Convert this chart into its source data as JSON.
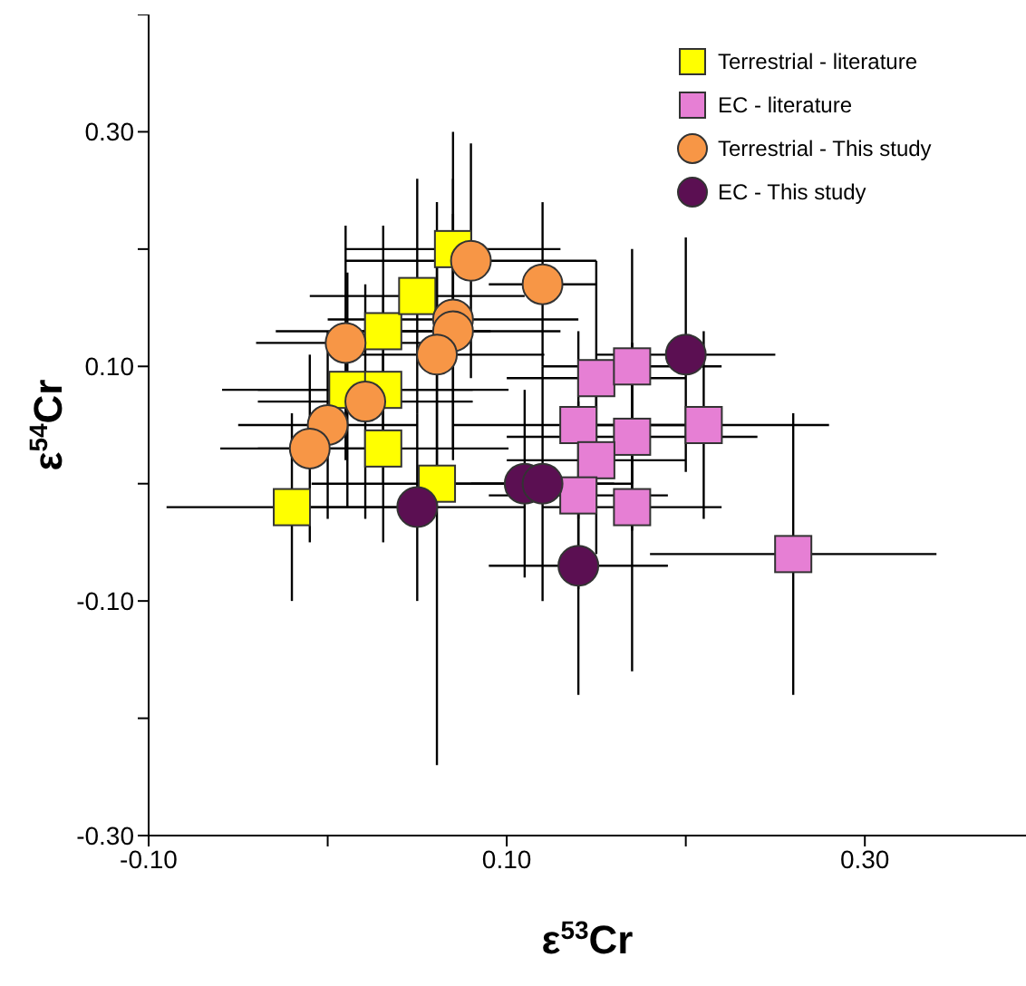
{
  "chart_data": {
    "type": "scatter",
    "xlabel": "ε$^{53}$Cr",
    "ylabel": "ε$^{54}$Cr",
    "xlim": [
      -0.1,
      0.39
    ],
    "ylim": [
      -0.3,
      0.4
    ],
    "xticks": [
      {
        "value": -0.1,
        "label": "-0.10"
      },
      {
        "value": 0,
        "label": null
      },
      {
        "value": 0.1,
        "label": "0.10"
      },
      {
        "value": 0.2,
        "label": null
      },
      {
        "value": 0.3,
        "label": "0.30"
      }
    ],
    "yticks": [
      {
        "value": -0.3,
        "label": "-0.30"
      },
      {
        "value": -0.2,
        "label": null
      },
      {
        "value": -0.1,
        "label": "-0.10"
      },
      {
        "value": 0,
        "label": null
      },
      {
        "value": 0.1,
        "label": "0.10"
      },
      {
        "value": 0.2,
        "label": null
      },
      {
        "value": 0.3,
        "label": "0.30"
      },
      {
        "value": 0.4,
        "label": null
      }
    ],
    "grid": false,
    "legend": "top right",
    "series": [
      {
        "name": "Terrestrial - literature",
        "color": "#ffff00",
        "marker": "square",
        "x": [
          -0.02,
          0.061,
          0.031,
          0.011,
          0.031,
          0.031,
          0.05,
          0.07
        ],
        "values": [
          -0.02,
          0.0,
          0.03,
          0.08,
          0.08,
          0.13,
          0.16,
          0.2
        ],
        "xerrors": [
          0.07,
          0.07,
          0.07,
          0.07,
          0.07,
          0.06,
          0.06,
          0.06
        ],
        "errors": [
          0.08,
          0.24,
          0.08,
          0.1,
          0.08,
          0.09,
          0.1,
          0.1
        ]
      },
      {
        "name": "EC - literature",
        "color": "#e67fd4",
        "marker": "square",
        "x": [
          0.15,
          0.17,
          0.14,
          0.17,
          0.21,
          0.15,
          0.14,
          0.17,
          0.26
        ],
        "values": [
          0.09,
          0.1,
          0.05,
          0.04,
          0.05,
          0.02,
          -0.01,
          -0.02,
          -0.06
        ],
        "xerrors": [
          0.05,
          0.05,
          0.07,
          0.07,
          0.07,
          0.05,
          0.05,
          0.05,
          0.08
        ],
        "errors": [
          0.1,
          0.1,
          0.08,
          0.08,
          0.08,
          0.08,
          0.08,
          0.14,
          0.12
        ]
      },
      {
        "name": "Terrestrial - This study",
        "color": "#f79646",
        "marker": "circle",
        "x": [
          0.08,
          0.12,
          0.07,
          0.07,
          0.061,
          0.01,
          0.021,
          0.0,
          -0.01
        ],
        "values": [
          0.19,
          0.17,
          0.14,
          0.13,
          0.11,
          0.12,
          0.07,
          0.05,
          0.03
        ],
        "xerrors": [
          0.07,
          0.03,
          0.07,
          0.06,
          0.06,
          0.05,
          0.06,
          0.05,
          0.05
        ],
        "errors": [
          0.1,
          0.07,
          0.12,
          0.1,
          0.1,
          0.1,
          0.1,
          0.08,
          0.08
        ]
      },
      {
        "name": "EC - This study",
        "color": "#5b0f52",
        "marker": "circle",
        "x": [
          0.2,
          0.11,
          0.12,
          0.14,
          0.05
        ],
        "values": [
          0.11,
          0.0,
          0.0,
          -0.07,
          -0.02
        ],
        "xerrors": [
          0.05,
          0.06,
          0.04,
          0.05,
          0.06
        ],
        "errors": [
          0.1,
          0.08,
          0.1,
          0.11,
          0.08
        ]
      }
    ]
  }
}
